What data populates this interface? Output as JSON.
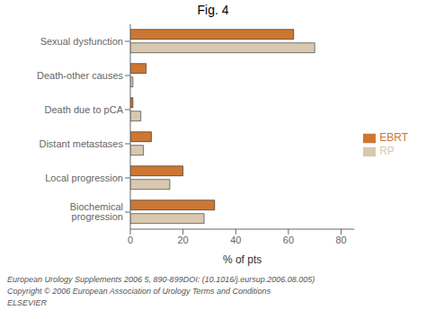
{
  "chart_data": {
    "type": "bar",
    "orientation": "horizontal",
    "title": "Fig. 4",
    "x_label": "% of pts",
    "categories": [
      "Sexual dysfunction",
      "Death-other causes",
      "Death due to pCA",
      "Distant metastases",
      "Local progression",
      "Biochemical progression"
    ],
    "series": [
      {
        "name": "EBRT",
        "color": "#CC7733",
        "values": [
          62,
          6,
          1,
          8,
          20,
          32
        ]
      },
      {
        "name": "RP",
        "color": "#D8C8B0",
        "values": [
          70,
          1,
          4,
          5,
          15,
          28
        ]
      }
    ],
    "xlim": [
      0,
      85
    ],
    "xticks": [
      0,
      20,
      40,
      60,
      80
    ],
    "grid": false,
    "legend": "right",
    "annotations": [
      "European Urology Supplements 2006 5, 890-899DOI: (10.1016/j.eursup.2006.08.005)",
      "Copyright © 2006 European Association of Urology Terms and Conditions",
      "ELSEVIER"
    ]
  }
}
